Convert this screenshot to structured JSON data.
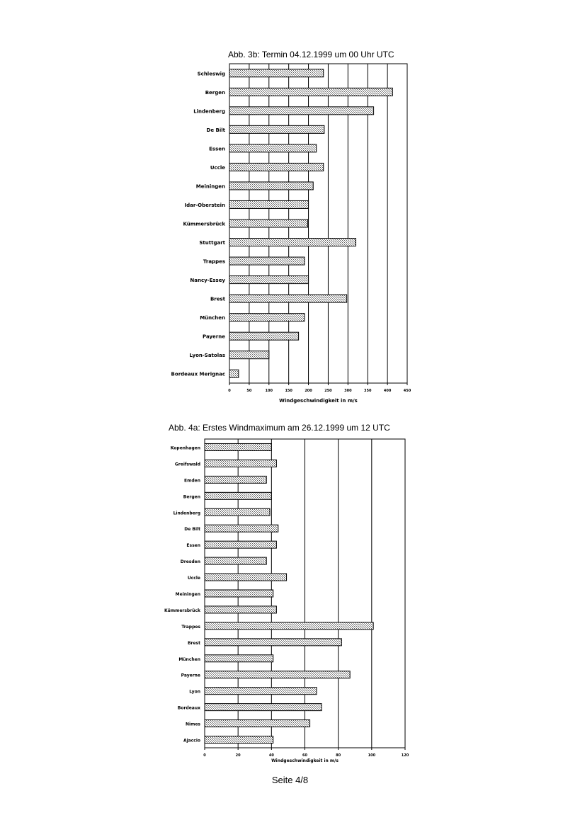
{
  "page": {
    "footer": "Seite 4/8"
  },
  "chart_data": [
    {
      "type": "bar",
      "orientation": "horizontal",
      "title": "Abb. 3b: Termin 04.12.1999 um 00 Uhr UTC",
      "xlabel": "Windgeschwindigkeit in m/s",
      "ylabel": "",
      "xlim": [
        0,
        450
      ],
      "xticks": [
        0,
        50,
        100,
        150,
        200,
        250,
        300,
        350,
        400,
        450
      ],
      "grid": "vertical",
      "categories": [
        "Schleswig",
        "Bergen",
        "Lindenberg",
        "De Bilt",
        "Essen",
        "Uccle",
        "Meiningen",
        "Idar-Oberstein",
        "Kümmersbrück",
        "Stuttgart",
        "Trappes",
        "Nancy-Essey",
        "Brest",
        "München",
        "Payerne",
        "Lyon-Satolas",
        "Bordeaux Merignac"
      ],
      "values": [
        238,
        413,
        365,
        240,
        220,
        238,
        212,
        200,
        198,
        320,
        190,
        200,
        297,
        190,
        175,
        100,
        23
      ]
    },
    {
      "type": "bar",
      "orientation": "horizontal",
      "title": "Abb. 4a: Erstes Windmaximum am 26.12.1999 um 12 UTC",
      "xlabel": "Windgeschwindigkeit in m/s",
      "ylabel": "",
      "xlim": [
        0,
        120
      ],
      "xticks": [
        0,
        20,
        40,
        60,
        80,
        100,
        120
      ],
      "grid": "vertical",
      "categories": [
        "Kopenhagen",
        "Greifswald",
        "Emden",
        "Bergen",
        "Lindenberg",
        "De Bilt",
        "Essen",
        "Dresden",
        "Uccle",
        "Meiningen",
        "Kümmersbrück",
        "Trappes",
        "Brest",
        "München",
        "Payerne",
        "Lyon",
        "Bordeaux",
        "Nimes",
        "Ajaccio"
      ],
      "values": [
        40,
        43,
        37,
        40,
        39,
        44,
        43,
        37,
        49,
        41,
        43,
        101,
        82,
        41,
        87,
        67,
        70,
        63,
        41
      ]
    }
  ]
}
